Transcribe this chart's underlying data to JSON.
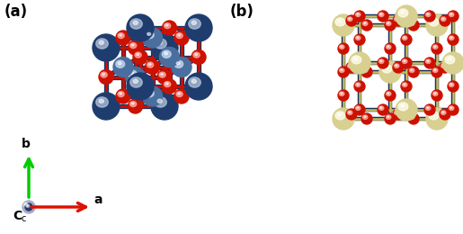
{
  "figure_width": 5.15,
  "figure_height": 2.6,
  "dpi": 100,
  "background_color": "#ffffff",
  "panel_a_label": "(a)",
  "panel_b_label": "(b)",
  "label_fontsize": 12,
  "label_fontweight": "bold",
  "axis_b_label": "b",
  "axis_a_label": "a",
  "axis_c_label": "C",
  "ni_color_dark": "#1e3d6e",
  "ni_color_light": "#4a6f9e",
  "o_color": "#cc1100",
  "alkali_color": "#d8d090",
  "bond_color_dark": "#1a3060",
  "bond_color_red": "#cc1100",
  "bond_color_alkali": "#c8c060",
  "arrow_b_color": "#00cc00",
  "arrow_a_color": "#dd1100",
  "axis_c_ball_dark": "#1e3d6e",
  "axis_c_ball_light": "#aaaacc"
}
